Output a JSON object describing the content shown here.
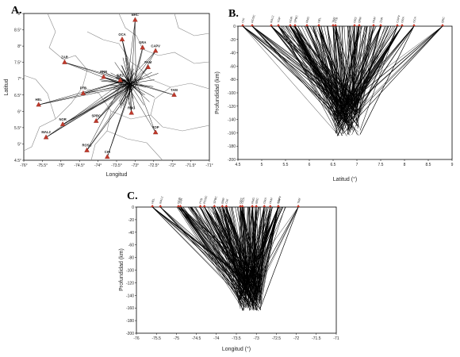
{
  "panels": {
    "a": {
      "letter": "A.",
      "xlabel": "Longitud",
      "ylabel": "Latitud",
      "xticks": [
        "-76°",
        "-75.5°",
        "-75°",
        "-74.5°",
        "-74°",
        "-73.5°",
        "-73°",
        "-72.5°",
        "-72°",
        "-71.5°",
        "-71°"
      ],
      "yticks": [
        "9°",
        "8.5°",
        "8°",
        "7.5°",
        "7°",
        "6.5°",
        "6°",
        "5.5°",
        "5°",
        "4.5°"
      ]
    },
    "b": {
      "letter": "B.",
      "xlabel": "Latitud (°)",
      "ylabel": "Profundidad (km)",
      "xticks": [
        "4.5",
        "5",
        "5.5",
        "6",
        "6.5",
        "7",
        "7.5",
        "8",
        "8.5",
        "9"
      ],
      "yticks": [
        "0",
        "-20",
        "-40",
        "-60",
        "-80",
        "-100",
        "-120",
        "-140",
        "-160",
        "-180",
        "-200"
      ]
    },
    "c": {
      "letter": "C.",
      "xlabel": "Longitud (°)",
      "ylabel": "Profundidad (km)",
      "xticks": [
        "-76",
        "-75.5",
        "-75",
        "-74.5",
        "-74",
        "-73.5",
        "-73",
        "-72.5",
        "-72",
        "-71.5",
        "-71"
      ],
      "yticks": [
        "0",
        "-20",
        "-40",
        "-60",
        "-80",
        "-100",
        "-120",
        "-140",
        "-160",
        "-180",
        "-200"
      ]
    }
  },
  "chart_data": [
    {
      "type": "scatter",
      "panel": "A",
      "xlabel": "Longitud",
      "ylabel": "Latitud",
      "xlim": [
        -76,
        -71
      ],
      "ylim": [
        4.5,
        9
      ],
      "stations": [
        {
          "name": "BRC",
          "lon": -73.0,
          "lat": 8.8
        },
        {
          "name": "OCA",
          "lon": -73.35,
          "lat": 8.2
        },
        {
          "name": "GRA",
          "lon": -72.8,
          "lat": 7.95
        },
        {
          "name": "CAPV",
          "lon": -72.45,
          "lat": 7.85
        },
        {
          "name": "ZAR",
          "lon": -74.9,
          "lat": 7.5
        },
        {
          "name": "PAM",
          "lon": -72.65,
          "lat": 7.35
        },
        {
          "name": "BRR",
          "lon": -73.85,
          "lat": 7.05
        },
        {
          "name": "GR2",
          "lon": -73.4,
          "lat": 6.95
        },
        {
          "name": "PTB",
          "lon": -74.4,
          "lat": 6.55
        },
        {
          "name": "TAM",
          "lon": -71.95,
          "lat": 6.5
        },
        {
          "name": "HEL",
          "lon": -75.6,
          "lat": 6.2
        },
        {
          "name": "RNG",
          "lon": -73.1,
          "lat": 5.95
        },
        {
          "name": "SPBC",
          "lon": -74.05,
          "lat": 5.7
        },
        {
          "name": "NOR",
          "lon": -74.95,
          "lat": 5.6
        },
        {
          "name": "YOP",
          "lon": -72.45,
          "lat": 5.35
        },
        {
          "name": "MAL2",
          "lon": -75.4,
          "lat": 5.2
        },
        {
          "name": "ROSC",
          "lon": -74.3,
          "lat": 4.8
        },
        {
          "name": "CHI",
          "lon": -73.75,
          "lat": 4.6
        }
      ]
    },
    {
      "type": "line",
      "panel": "B",
      "xlabel": "Latitud (°)",
      "ylabel": "Profundidad (km)",
      "xlim": [
        4.5,
        9
      ],
      "ylim": [
        -200,
        0
      ],
      "focus": {
        "x": 6.8,
        "depth_range": [
          -165,
          -110
        ]
      }
    },
    {
      "type": "line",
      "panel": "C",
      "xlabel": "Longitud (°)",
      "ylabel": "Profundidad (km)",
      "xlim": [
        -76,
        -71
      ],
      "ylim": [
        -200,
        0
      ],
      "focus": {
        "x": -73.15,
        "depth_range": [
          -165,
          -110
        ]
      }
    }
  ],
  "colors": {
    "station": "#c0392b",
    "ray": "#000000",
    "border": "#8a8a8a"
  }
}
